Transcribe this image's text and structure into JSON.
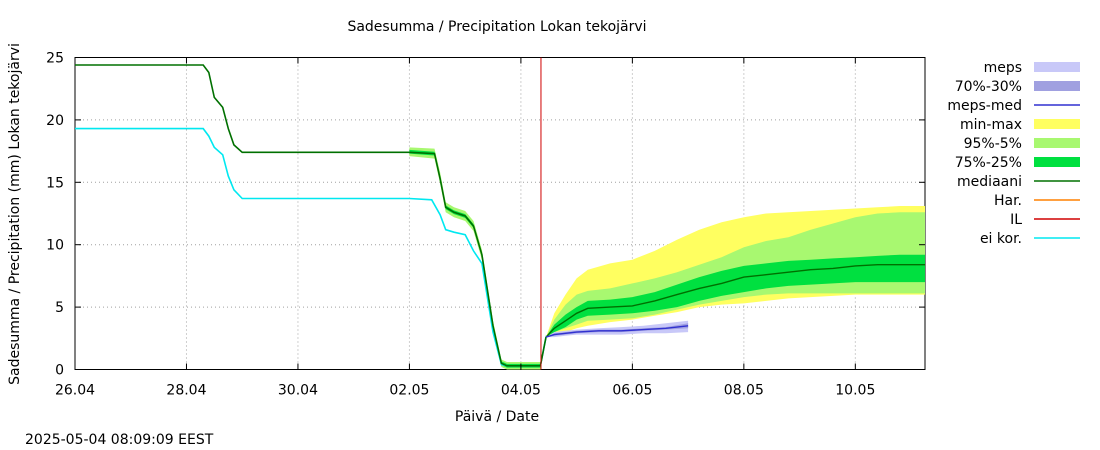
{
  "chart_data": {
    "type": "area",
    "title": "Sadesumma / Precipitation  Lokan tekojärvi",
    "xlabel": "Päivä / Date",
    "ylabel": "Sadesumma / Precipitation (mm)  Lokan tekojärvi",
    "timestamp": "2025-05-04 08:09:09 EEST",
    "x_unit": "days since 26.04",
    "xlim": [
      0,
      15.25
    ],
    "ylim": [
      0,
      25
    ],
    "grid": true,
    "legend_position": "right",
    "y_ticks": [
      "0",
      "5",
      "10",
      "15",
      "20",
      "25"
    ],
    "x_ticks": [
      {
        "x": 0,
        "label": "26.04"
      },
      {
        "x": 2,
        "label": "28.04"
      },
      {
        "x": 4,
        "label": "30.04"
      },
      {
        "x": 6,
        "label": "02.05"
      },
      {
        "x": 8,
        "label": "04.05"
      },
      {
        "x": 10,
        "label": "06.05"
      },
      {
        "x": 12,
        "label": "08.05"
      },
      {
        "x": 14,
        "label": "10.05"
      }
    ],
    "now_line_x": 8.36,
    "colors": {
      "meps": "#c8c8f8",
      "meps_70_30": "#a0a0e0",
      "meps_med": "#3030d0",
      "min_max": "#ffff60",
      "p95_5": "#a8f870",
      "p75_25": "#00e040",
      "mediaani": "#007000",
      "har": "#ff8000",
      "il": "#d00000",
      "ei_kor": "#00e8f0"
    },
    "legend": [
      {
        "key": "meps",
        "label": "meps",
        "kind": "band"
      },
      {
        "key": "meps_70_30",
        "label": "70%-30%",
        "kind": "band"
      },
      {
        "key": "meps_med",
        "label": "meps-med",
        "kind": "line"
      },
      {
        "key": "min_max",
        "label": "min-max",
        "kind": "band"
      },
      {
        "key": "p95_5",
        "label": "95%-5%",
        "kind": "band"
      },
      {
        "key": "p75_25",
        "label": "75%-25%",
        "kind": "band"
      },
      {
        "key": "mediaani",
        "label": "mediaani",
        "kind": "line"
      },
      {
        "key": "har",
        "label": "Har.",
        "kind": "line"
      },
      {
        "key": "il",
        "label": "IL",
        "kind": "line"
      },
      {
        "key": "ei_kor",
        "label": "ei kor.",
        "kind": "line"
      }
    ],
    "series": {
      "observed_main": {
        "name": "mediaani (observed)",
        "x": [
          0,
          2.3,
          2.4,
          2.5,
          2.65,
          2.75,
          2.85,
          3.0,
          6.0,
          6.45,
          6.55,
          6.65,
          6.8,
          7.0,
          7.15,
          7.3,
          7.5,
          7.65,
          7.75,
          8.35,
          8.45
        ],
        "y": [
          24.4,
          24.4,
          23.8,
          21.8,
          21.0,
          19.3,
          18.0,
          17.4,
          17.4,
          17.3,
          15.3,
          13.0,
          12.6,
          12.3,
          11.5,
          9.2,
          3.5,
          0.5,
          0.3,
          0.3,
          2.6
        ]
      },
      "ei_kor": {
        "name": "ei kor.",
        "x": [
          0,
          2.3,
          2.4,
          2.5,
          2.65,
          2.75,
          2.85,
          3.0,
          6.0,
          6.4,
          6.55,
          6.65,
          6.8,
          7.0,
          7.15,
          7.3,
          7.5,
          7.65,
          7.75,
          8.35,
          8.45
        ],
        "y": [
          19.3,
          19.3,
          18.7,
          17.8,
          17.2,
          15.5,
          14.4,
          13.7,
          13.7,
          13.6,
          12.4,
          11.2,
          11.0,
          10.8,
          9.5,
          8.5,
          3.0,
          0.4,
          0.3,
          0.3,
          2.6
        ]
      },
      "mediaani_forecast": {
        "name": "mediaani",
        "x": [
          8.45,
          8.6,
          8.8,
          9.0,
          9.2,
          9.6,
          10.0,
          10.4,
          10.8,
          11.2,
          11.6,
          12.0,
          12.4,
          12.8,
          13.2,
          13.6,
          14.0,
          14.4,
          14.8,
          15.25
        ],
        "y": [
          2.6,
          3.3,
          3.9,
          4.5,
          4.9,
          5.0,
          5.1,
          5.5,
          6.0,
          6.5,
          6.9,
          7.4,
          7.6,
          7.8,
          8.0,
          8.1,
          8.3,
          8.4,
          8.4,
          8.4
        ]
      },
      "meps_med": {
        "name": "meps-med",
        "x": [
          8.45,
          8.6,
          8.8,
          9.0,
          9.4,
          9.8,
          10.2,
          10.6,
          11.0
        ],
        "y": [
          2.6,
          2.8,
          2.9,
          3.0,
          3.1,
          3.1,
          3.2,
          3.3,
          3.5
        ]
      }
    },
    "bands": {
      "min_max": {
        "x": [
          8.45,
          8.6,
          8.8,
          9.0,
          9.2,
          9.6,
          10.0,
          10.4,
          10.8,
          11.2,
          11.6,
          12.0,
          12.4,
          12.8,
          13.2,
          13.6,
          14.0,
          14.4,
          14.8,
          15.25
        ],
        "lo": [
          2.6,
          2.8,
          3.0,
          3.3,
          3.5,
          3.8,
          4.0,
          4.3,
          4.6,
          5.0,
          5.2,
          5.3,
          5.5,
          5.7,
          5.8,
          5.9,
          6.0,
          6.0,
          6.0,
          6.0
        ],
        "hi": [
          2.6,
          4.5,
          6.0,
          7.3,
          8.0,
          8.5,
          8.8,
          9.5,
          10.4,
          11.2,
          11.8,
          12.2,
          12.5,
          12.6,
          12.7,
          12.8,
          12.9,
          13.0,
          13.1,
          13.1
        ]
      },
      "p95_5": {
        "x": [
          8.45,
          8.6,
          8.8,
          9.0,
          9.2,
          9.6,
          10.0,
          10.4,
          10.8,
          11.2,
          11.6,
          12.0,
          12.4,
          12.8,
          13.2,
          13.6,
          14.0,
          14.4,
          14.8,
          15.25
        ],
        "lo": [
          2.6,
          3.0,
          3.3,
          3.6,
          3.9,
          4.0,
          4.1,
          4.4,
          4.8,
          5.2,
          5.5,
          5.8,
          6.0,
          6.1,
          6.1,
          6.1,
          6.1,
          6.1,
          6.1,
          6.1
        ],
        "hi": [
          2.6,
          4.0,
          5.2,
          6.0,
          6.3,
          6.5,
          6.9,
          7.3,
          7.8,
          8.4,
          9.0,
          9.8,
          10.3,
          10.6,
          11.2,
          11.7,
          12.2,
          12.5,
          12.6,
          12.6
        ]
      },
      "p75_25": {
        "x": [
          8.45,
          8.6,
          8.8,
          9.0,
          9.2,
          9.6,
          10.0,
          10.4,
          10.8,
          11.2,
          11.6,
          12.0,
          12.4,
          12.8,
          13.2,
          13.6,
          14.0,
          14.4,
          14.8,
          15.25
        ],
        "lo": [
          2.6,
          3.0,
          3.4,
          4.0,
          4.3,
          4.4,
          4.5,
          4.7,
          5.0,
          5.5,
          5.9,
          6.2,
          6.5,
          6.7,
          6.8,
          6.9,
          7.0,
          7.0,
          7.0,
          7.0
        ],
        "hi": [
          2.6,
          3.6,
          4.4,
          5.0,
          5.5,
          5.6,
          5.8,
          6.2,
          6.8,
          7.4,
          7.9,
          8.3,
          8.5,
          8.7,
          8.8,
          8.9,
          9.0,
          9.1,
          9.2,
          9.2
        ]
      },
      "meps": {
        "x": [
          8.45,
          8.6,
          8.8,
          9.0,
          9.4,
          9.8,
          10.2,
          10.6,
          11.0
        ],
        "lo": [
          2.6,
          2.6,
          2.7,
          2.8,
          2.8,
          2.8,
          2.9,
          2.9,
          3.0
        ],
        "hi": [
          2.6,
          3.0,
          3.1,
          3.2,
          3.3,
          3.4,
          3.5,
          3.7,
          3.9
        ]
      },
      "meps_70_30": {
        "x": [
          8.45,
          8.6,
          8.8,
          9.0,
          9.4,
          9.8,
          10.2,
          10.6,
          11.0
        ],
        "lo": [
          2.6,
          2.7,
          2.8,
          2.9,
          3.0,
          3.0,
          3.1,
          3.2,
          3.3
        ],
        "hi": [
          2.6,
          2.9,
          3.0,
          3.1,
          3.2,
          3.2,
          3.3,
          3.4,
          3.7
        ]
      },
      "observed_band": {
        "x": [
          6.0,
          6.45,
          6.55,
          6.65,
          6.8,
          7.0,
          7.15,
          7.3,
          7.5,
          7.65,
          7.75,
          8.35,
          8.45
        ],
        "lo": [
          17.1,
          16.9,
          14.9,
          12.6,
          12.2,
          11.9,
          11.1,
          8.8,
          3.1,
          0.2,
          0.0,
          0.0,
          2.4
        ],
        "hi": [
          17.8,
          17.7,
          15.8,
          13.4,
          13.0,
          12.7,
          11.9,
          9.6,
          3.9,
          0.8,
          0.6,
          0.6,
          2.8
        ]
      }
    }
  }
}
